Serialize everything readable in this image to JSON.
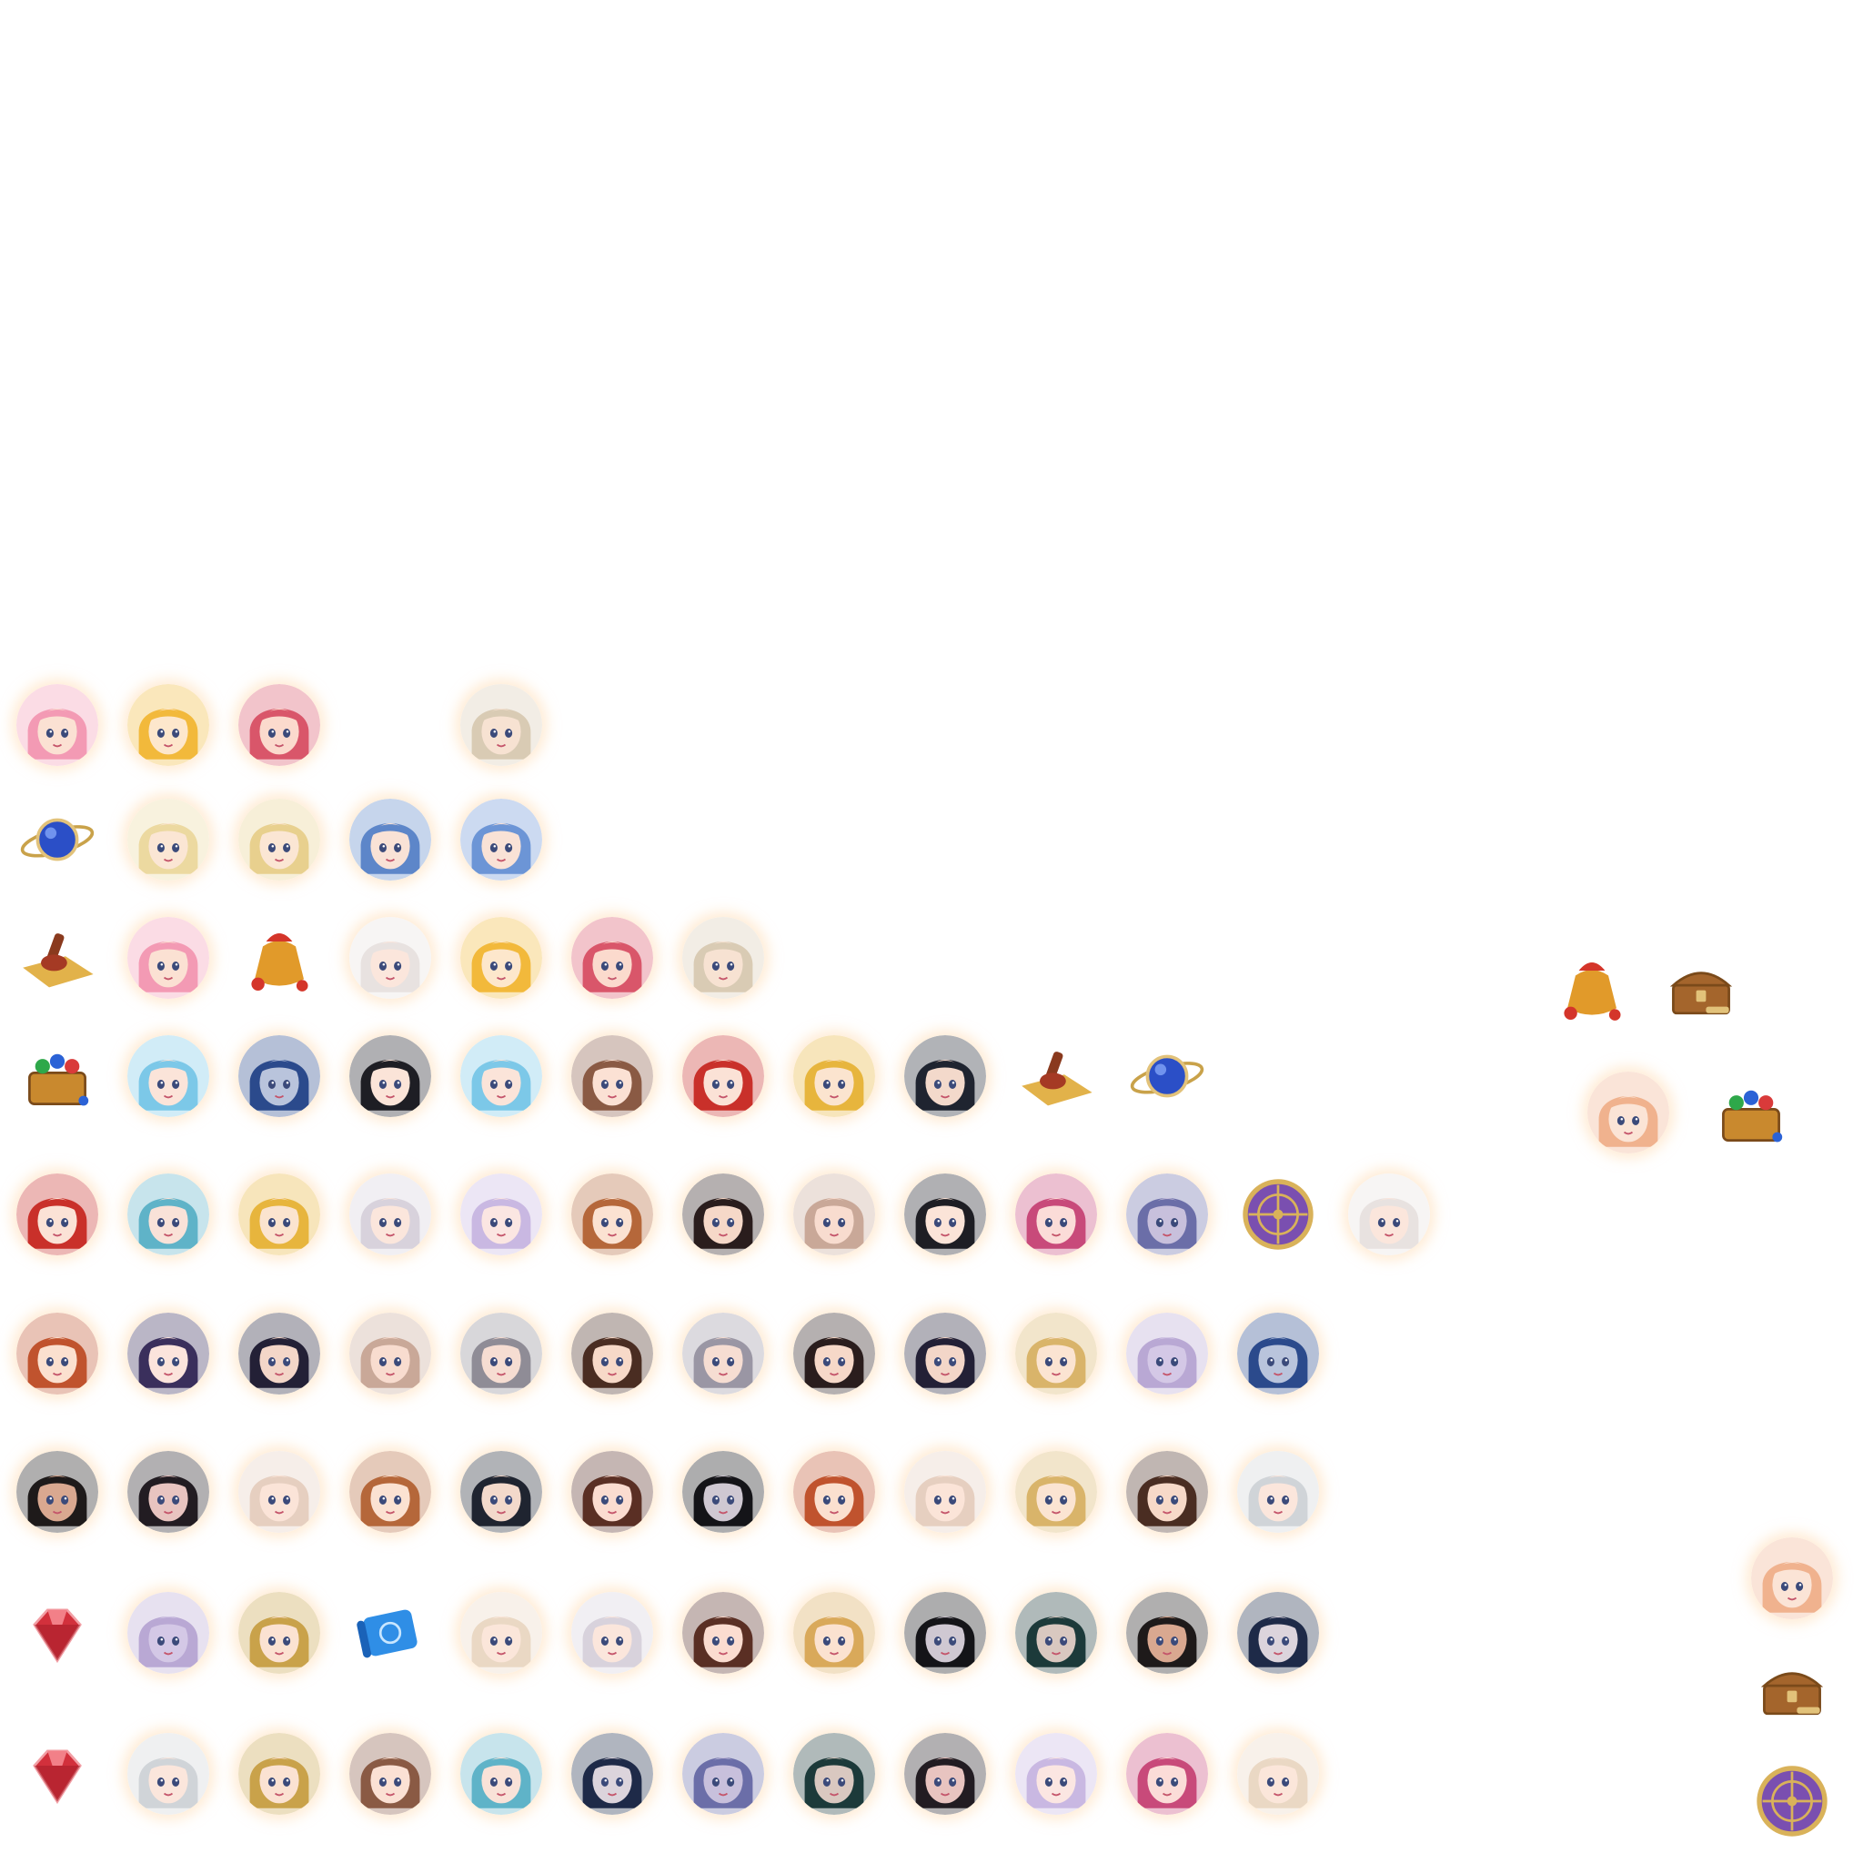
{
  "sheet": {
    "rows": [
      {
        "items": [
          {
            "kind": "portrait",
            "icon": "portrait-pink-hair-icon",
            "hair": "#f39ab4",
            "skin": "#fbe1d3",
            "col": 0
          },
          {
            "kind": "portrait",
            "icon": "portrait-blonde-hair-icon",
            "hair": "#f2b93b",
            "skin": "#fde7cc",
            "col": 1
          },
          {
            "kind": "portrait",
            "icon": "portrait-rose-hair-icon",
            "hair": "#d9566a",
            "skin": "#fbdacd",
            "col": 2
          },
          {
            "kind": "portrait",
            "icon": "portrait-silver-crown-icon",
            "hair": "#d9cbb4",
            "skin": "#f7e2d2",
            "col": 4
          }
        ]
      },
      {
        "items": [
          {
            "kind": "item",
            "icon": "orb-ring-icon",
            "color": "#2b4fc7",
            "col": 0
          },
          {
            "kind": "portrait",
            "icon": "portrait-pale-blonde-icon",
            "hair": "#ecd9a0",
            "skin": "#fbe6d4",
            "col": 1
          },
          {
            "kind": "portrait",
            "icon": "portrait-pale-blonde-icon",
            "hair": "#e8d08e",
            "skin": "#fbe6d4",
            "col": 2
          },
          {
            "kind": "portrait",
            "icon": "portrait-blue-hair-icon",
            "hair": "#5d86c9",
            "skin": "#f9e2d6",
            "col": 3
          },
          {
            "kind": "portrait",
            "icon": "portrait-blue-hair-icon",
            "hair": "#6c95d6",
            "skin": "#f9e2d6",
            "col": 4
          }
        ]
      },
      {
        "items": [
          {
            "kind": "item",
            "icon": "gavel-scroll-icon",
            "color": "#e2b24a",
            "col": 0
          },
          {
            "kind": "portrait",
            "icon": "portrait-pink-hair-icon",
            "hair": "#f39ab4",
            "skin": "#fbe1d3",
            "col": 1
          },
          {
            "kind": "item",
            "icon": "gold-bag-icon",
            "color": "#e19a2a",
            "col": 2
          },
          {
            "kind": "portrait",
            "icon": "portrait-white-hair-icon",
            "hair": "#e8e2e0",
            "skin": "#fbe6dc",
            "col": 3
          },
          {
            "kind": "portrait",
            "icon": "portrait-blonde-hair-icon",
            "hair": "#f2b93b",
            "skin": "#fde7cc",
            "col": 4
          },
          {
            "kind": "portrait",
            "icon": "portrait-rose-hair-icon",
            "hair": "#d9566a",
            "skin": "#fbdacd",
            "col": 5
          },
          {
            "kind": "portrait",
            "icon": "portrait-silver-crown-icon",
            "hair": "#d9cbb4",
            "skin": "#f7e2d2",
            "col": 6
          }
        ]
      },
      {
        "items": [
          {
            "kind": "item",
            "icon": "gem-chest-icon",
            "color": "#c9892e",
            "col": 0
          },
          {
            "kind": "portrait",
            "icon": "portrait-cyan-hair-icon",
            "hair": "#7cc8e8",
            "skin": "#fbe4d9",
            "col": 1
          },
          {
            "kind": "portrait",
            "icon": "portrait-dark-blue-hair-icon",
            "hair": "#2b4a8c",
            "skin": "#b9c4dc",
            "col": 2
          },
          {
            "kind": "portrait",
            "icon": "portrait-black-hair-icon",
            "hair": "#1e1e24",
            "skin": "#fbe4d8",
            "col": 3
          },
          {
            "kind": "portrait",
            "icon": "portrait-cyan-hair-icon",
            "hair": "#7cc8e8",
            "skin": "#fbe4d9",
            "col": 4
          },
          {
            "kind": "portrait",
            "icon": "portrait-brown-hair-icon",
            "hair": "#8a5a44",
            "skin": "#fbe1d4",
            "col": 5
          },
          {
            "kind": "portrait",
            "icon": "portrait-red-hair-icon",
            "hair": "#c9302a",
            "skin": "#fbe2d6",
            "col": 6
          },
          {
            "kind": "portrait",
            "icon": "portrait-gold-hair-icon",
            "hair": "#e7b53d",
            "skin": "#fbe4cf",
            "col": 7
          },
          {
            "kind": "portrait",
            "icon": "portrait-captain-hat-icon",
            "hair": "#1f2430",
            "skin": "#f3d9cb",
            "col": 8
          },
          {
            "kind": "item",
            "icon": "gavel-scroll-icon",
            "color": "#e2b24a",
            "col": 9
          },
          {
            "kind": "item",
            "icon": "orb-ring-icon",
            "color": "#2b4fc7",
            "col": 10
          }
        ]
      },
      {
        "items": [
          {
            "kind": "portrait",
            "icon": "portrait-red-hair-icon",
            "hair": "#c9302a",
            "skin": "#fbe2d6",
            "col": 0
          },
          {
            "kind": "portrait",
            "icon": "portrait-teal-hair-icon",
            "hair": "#5fb3c8",
            "skin": "#f9e2d8",
            "col": 1
          },
          {
            "kind": "portrait",
            "icon": "portrait-gold-hair-icon",
            "hair": "#e7b53d",
            "skin": "#fbe4cf",
            "col": 2
          },
          {
            "kind": "portrait",
            "icon": "portrait-silver-hair-icon",
            "hair": "#d8d2dc",
            "skin": "#fbe6dc",
            "col": 3
          },
          {
            "kind": "portrait",
            "icon": "portrait-lilac-hair-icon",
            "hair": "#c9b8e2",
            "skin": "#fbe6e2",
            "col": 4
          },
          {
            "kind": "portrait",
            "icon": "portrait-auburn-hair-icon",
            "hair": "#b5673a",
            "skin": "#fbe2d2",
            "col": 5
          },
          {
            "kind": "portrait",
            "icon": "portrait-black-hair-icon",
            "hair": "#2a1d1d",
            "skin": "#f6d8c8",
            "col": 6
          },
          {
            "kind": "portrait",
            "icon": "portrait-ash-hair-icon",
            "hair": "#c9a898",
            "skin": "#f8dccf",
            "col": 7
          },
          {
            "kind": "portrait",
            "icon": "portrait-black-hair-icon",
            "hair": "#1e1e24",
            "skin": "#fbe4d8",
            "col": 8
          },
          {
            "kind": "portrait",
            "icon": "portrait-magenta-hair-icon",
            "hair": "#c84a7a",
            "skin": "#fbdcd8",
            "col": 9
          },
          {
            "kind": "portrait",
            "icon": "portrait-horned-icon",
            "hair": "#6b6ea8",
            "skin": "#c8c0dc",
            "col": 10
          },
          {
            "kind": "item",
            "icon": "purple-shield-icon",
            "color": "#7a4fb0",
            "col": 11
          },
          {
            "kind": "portrait",
            "icon": "portrait-white-hair-icon",
            "hair": "#e8e2e0",
            "skin": "#fbe6dc",
            "col": 12
          }
        ]
      },
      {
        "items": [
          {
            "kind": "portrait",
            "icon": "portrait-auburn-hair-icon",
            "hair": "#c0532e",
            "skin": "#fbe0cf",
            "col": 0
          },
          {
            "kind": "portrait",
            "icon": "portrait-flower-hair-icon",
            "hair": "#3a2f5c",
            "skin": "#fbe4dc",
            "col": 1
          },
          {
            "kind": "portrait",
            "icon": "portrait-dark-hair-icon",
            "hair": "#232036",
            "skin": "#f3d6c8",
            "col": 2
          },
          {
            "kind": "portrait",
            "icon": "portrait-ash-hair-icon",
            "hair": "#c9a898",
            "skin": "#f8dccf",
            "col": 3
          },
          {
            "kind": "portrait",
            "icon": "portrait-horned-icon",
            "hair": "#8f8c96",
            "skin": "#f6ddd2",
            "col": 4
          },
          {
            "kind": "portrait",
            "icon": "portrait-brown-hair-icon",
            "hair": "#4a2d22",
            "skin": "#f7d9c8",
            "col": 5
          },
          {
            "kind": "portrait",
            "icon": "portrait-horned-icon",
            "hair": "#9a96a4",
            "skin": "#f6ddd2",
            "col": 6
          },
          {
            "kind": "portrait",
            "icon": "portrait-black-hair-icon",
            "hair": "#2a1d1d",
            "skin": "#f6d8c8",
            "col": 7
          },
          {
            "kind": "portrait",
            "icon": "portrait-dark-hair-icon",
            "hair": "#232036",
            "skin": "#f3d6c8",
            "col": 8
          },
          {
            "kind": "portrait",
            "icon": "portrait-gold-hair-icon",
            "hair": "#d9b46a",
            "skin": "#fbe4d2",
            "col": 9
          },
          {
            "kind": "portrait",
            "icon": "portrait-lilac-hair-icon",
            "hair": "#b9a8d4",
            "skin": "#d4c8e6",
            "col": 10
          },
          {
            "kind": "portrait",
            "icon": "portrait-dark-blue-hair-icon",
            "hair": "#2b4a8c",
            "skin": "#b9c4dc",
            "col": 11
          }
        ]
      },
      {
        "items": [
          {
            "kind": "portrait",
            "icon": "portrait-black-crown-icon",
            "hair": "#1e1a1a",
            "skin": "#d9a890",
            "col": 0
          },
          {
            "kind": "portrait",
            "icon": "portrait-black-crown-icon",
            "hair": "#221c22",
            "skin": "#e8c4c0",
            "col": 1
          },
          {
            "kind": "portrait",
            "icon": "portrait-platinum-hair-icon",
            "hair": "#e6cfc0",
            "skin": "#fbe4d8",
            "col": 2
          },
          {
            "kind": "portrait",
            "icon": "portrait-auburn-hair-icon",
            "hair": "#b5673a",
            "skin": "#fbe2d2",
            "col": 3
          },
          {
            "kind": "portrait",
            "icon": "portrait-captain-hat-icon",
            "hair": "#1f2430",
            "skin": "#f3d9cb",
            "col": 4
          },
          {
            "kind": "portrait",
            "icon": "portrait-brown-hair-icon",
            "hair": "#5a2f24",
            "skin": "#fbdcd0",
            "col": 5
          },
          {
            "kind": "portrait",
            "icon": "portrait-black-hair-icon",
            "hair": "#141418",
            "skin": "#cfc8d2",
            "col": 6
          },
          {
            "kind": "portrait",
            "icon": "portrait-auburn-hair-icon",
            "hair": "#c0532e",
            "skin": "#fbe0cf",
            "col": 7
          },
          {
            "kind": "portrait",
            "icon": "portrait-platinum-hair-icon",
            "hair": "#e6cfc0",
            "skin": "#fbe4d8",
            "col": 8
          },
          {
            "kind": "portrait",
            "icon": "portrait-gold-hair-icon",
            "hair": "#d9b46a",
            "skin": "#fbe4d2",
            "col": 9
          },
          {
            "kind": "portrait",
            "icon": "portrait-brown-hair-icon",
            "hair": "#4a2d22",
            "skin": "#f7d9c8",
            "col": 10
          },
          {
            "kind": "portrait",
            "icon": "portrait-silver-hair-icon",
            "hair": "#d0d4d8",
            "skin": "#fbe6dc",
            "col": 11
          }
        ]
      },
      {
        "items": [
          {
            "kind": "item",
            "icon": "ruby-gem-icon",
            "color": "#d2303c",
            "col": 0
          },
          {
            "kind": "portrait",
            "icon": "portrait-lilac-hair-icon",
            "hair": "#b9a8d4",
            "skin": "#d4c8e6",
            "col": 1
          },
          {
            "kind": "portrait",
            "icon": "portrait-gold-hair-icon",
            "hair": "#c9a24a",
            "skin": "#fbe2d2",
            "col": 2
          },
          {
            "kind": "item",
            "icon": "blue-scroll-icon",
            "color": "#2f8ee6",
            "col": 3
          },
          {
            "kind": "portrait",
            "icon": "portrait-platinum-hair-icon",
            "hair": "#ead8c4",
            "skin": "#fbe6da",
            "col": 4
          },
          {
            "kind": "portrait",
            "icon": "portrait-silver-hair-icon",
            "hair": "#d8d2dc",
            "skin": "#fbe6dc",
            "col": 5
          },
          {
            "kind": "portrait",
            "icon": "portrait-brown-hair-icon",
            "hair": "#5a2f24",
            "skin": "#fbdcd0",
            "col": 6
          },
          {
            "kind": "portrait",
            "icon": "portrait-gold-hair-icon",
            "hair": "#d9a95a",
            "skin": "#fbe2d0",
            "col": 7
          },
          {
            "kind": "portrait",
            "icon": "portrait-black-hair-icon",
            "hair": "#141418",
            "skin": "#cfc8d2",
            "col": 8
          },
          {
            "kind": "portrait",
            "icon": "portrait-teal-dark-icon",
            "hair": "#1c3a3a",
            "skin": "#d9c8c0",
            "col": 9
          },
          {
            "kind": "portrait",
            "icon": "portrait-black-crown-icon",
            "hair": "#1e1a1a",
            "skin": "#d9a890",
            "col": 10
          },
          {
            "kind": "portrait",
            "icon": "portrait-dark-blue-hair-icon",
            "hair": "#1e2a48",
            "skin": "#dcd4dc",
            "col": 11
          }
        ]
      },
      {
        "items": [
          {
            "kind": "item",
            "icon": "ruby-gem-icon",
            "color": "#d2303c",
            "col": 0
          },
          {
            "kind": "portrait",
            "icon": "portrait-silver-hair-icon",
            "hair": "#d0d4d8",
            "skin": "#fbe6dc",
            "col": 1
          },
          {
            "kind": "portrait",
            "icon": "portrait-gold-hair-icon",
            "hair": "#c9a24a",
            "skin": "#fbe2d2",
            "col": 2
          },
          {
            "kind": "portrait",
            "icon": "portrait-brown-hair-icon",
            "hair": "#8a5a44",
            "skin": "#fbe1d4",
            "col": 3
          },
          {
            "kind": "portrait",
            "icon": "portrait-teal-hair-icon",
            "hair": "#5fb3c8",
            "skin": "#f9e2d8",
            "col": 4
          },
          {
            "kind": "portrait",
            "icon": "portrait-dark-blue-hair-icon",
            "hair": "#1e2a48",
            "skin": "#dcd4dc",
            "col": 5
          },
          {
            "kind": "portrait",
            "icon": "portrait-horned-icon",
            "hair": "#6b6ea8",
            "skin": "#c8c0dc",
            "col": 6
          },
          {
            "kind": "portrait",
            "icon": "portrait-teal-dark-icon",
            "hair": "#1c3a3a",
            "skin": "#d9c8c0",
            "col": 7
          },
          {
            "kind": "portrait",
            "icon": "portrait-black-crown-icon",
            "hair": "#221c22",
            "skin": "#e8c4c0",
            "col": 8
          },
          {
            "kind": "portrait",
            "icon": "portrait-lilac-hair-icon",
            "hair": "#c9b8e2",
            "skin": "#fbe6e2",
            "col": 9
          },
          {
            "kind": "portrait",
            "icon": "portrait-magenta-hair-icon",
            "hair": "#c84a7a",
            "skin": "#fbdcd8",
            "col": 10
          },
          {
            "kind": "portrait",
            "icon": "portrait-platinum-hair-icon",
            "hair": "#ead8c4",
            "skin": "#fbe6da",
            "col": 11
          }
        ]
      }
    ],
    "extras": [
      {
        "kind": "item",
        "icon": "gold-bag-icon",
        "color": "#e19a2a",
        "slot": "a"
      },
      {
        "kind": "item",
        "icon": "treasure-chest-icon",
        "color": "#a4652c",
        "slot": "b"
      },
      {
        "kind": "portrait",
        "icon": "portrait-strawberry-blonde-icon",
        "hair": "#f0b28e",
        "skin": "#fbe4d6",
        "slot": "c"
      },
      {
        "kind": "item",
        "icon": "gem-chest-icon",
        "color": "#c9892e",
        "slot": "d"
      },
      {
        "kind": "portrait",
        "icon": "portrait-strawberry-blonde-icon",
        "hair": "#f0b28e",
        "skin": "#fbe4d6",
        "slot": "e"
      },
      {
        "kind": "item",
        "icon": "treasure-chest-icon",
        "color": "#a4652c",
        "slot": "f"
      },
      {
        "kind": "item",
        "icon": "purple-shield-icon",
        "color": "#7a4fb0",
        "slot": "g"
      }
    ]
  }
}
